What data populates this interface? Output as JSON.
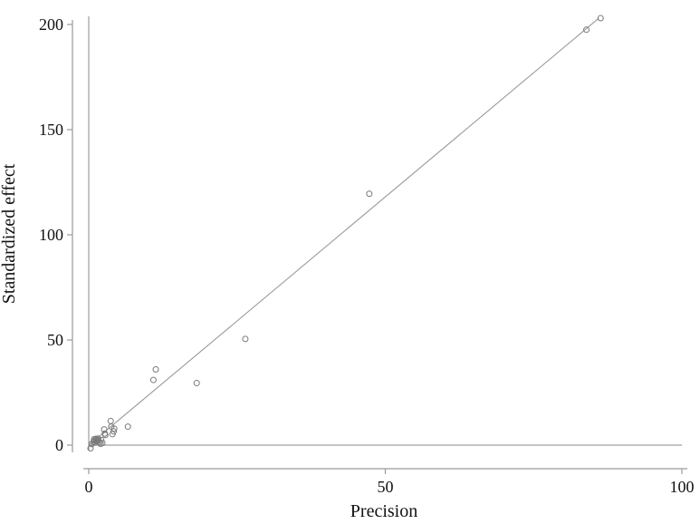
{
  "chart_data": {
    "type": "scatter",
    "title": "",
    "xlabel": "Precision",
    "ylabel": "Standardized effect",
    "xlim": [
      0,
      100
    ],
    "ylim": [
      0,
      200
    ],
    "xticks": [
      0,
      50,
      100
    ],
    "yticks": [
      0,
      50,
      100,
      150,
      200
    ],
    "xtick_labels": [
      "0",
      "50",
      "100"
    ],
    "ytick_labels": [
      "0",
      "50",
      "100",
      "150",
      "200"
    ],
    "grid": false,
    "legend": "none",
    "reference_lines": {
      "y_zero": true,
      "x_zero": true
    },
    "fit_line": {
      "from": [
        0,
        0
      ],
      "to": [
        86,
        203
      ]
    },
    "points": [
      {
        "x": 0.3,
        "y": -1.5
      },
      {
        "x": 0.5,
        "y": 0.5
      },
      {
        "x": 0.8,
        "y": 1.5
      },
      {
        "x": 0.9,
        "y": 2.8
      },
      {
        "x": 1.0,
        "y": 2.2
      },
      {
        "x": 1.1,
        "y": 1.2
      },
      {
        "x": 1.2,
        "y": 3.0
      },
      {
        "x": 1.3,
        "y": 2.5
      },
      {
        "x": 1.4,
        "y": 1.8
      },
      {
        "x": 1.5,
        "y": 2.6
      },
      {
        "x": 1.6,
        "y": 3.1
      },
      {
        "x": 1.8,
        "y": 1.4
      },
      {
        "x": 2.0,
        "y": 0.6
      },
      {
        "x": 2.1,
        "y": 2.4
      },
      {
        "x": 2.3,
        "y": 1.0
      },
      {
        "x": 2.6,
        "y": 7.5
      },
      {
        "x": 2.7,
        "y": 5.5
      },
      {
        "x": 2.8,
        "y": 4.8
      },
      {
        "x": 3.7,
        "y": 11.5
      },
      {
        "x": 3.8,
        "y": 8.8
      },
      {
        "x": 4.0,
        "y": 5.2
      },
      {
        "x": 4.2,
        "y": 6.5
      },
      {
        "x": 4.3,
        "y": 7.8
      },
      {
        "x": 6.6,
        "y": 8.8
      },
      {
        "x": 10.9,
        "y": 31.0
      },
      {
        "x": 11.3,
        "y": 36.0
      },
      {
        "x": 18.2,
        "y": 29.5
      },
      {
        "x": 26.4,
        "y": 50.5
      },
      {
        "x": 47.3,
        "y": 119.5
      },
      {
        "x": 83.9,
        "y": 197.5
      },
      {
        "x": 86.3,
        "y": 203.0
      }
    ]
  }
}
